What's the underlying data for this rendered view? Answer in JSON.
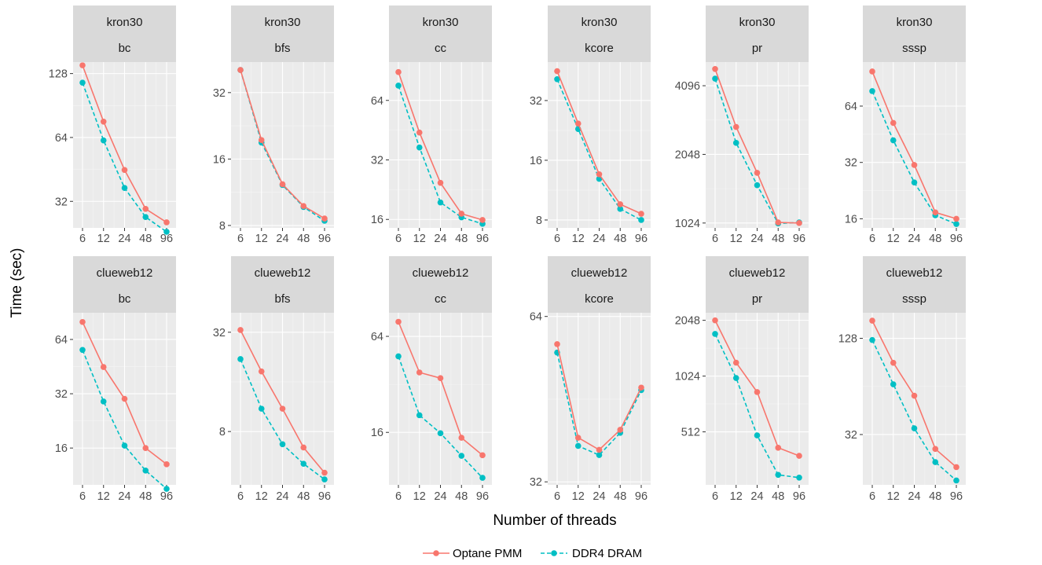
{
  "chart_data": {
    "type": "line",
    "xlabel": "Number of threads",
    "ylabel": "Time (sec)",
    "x": [
      6,
      12,
      24,
      48,
      96
    ],
    "x_tick_labels": [
      "6",
      "12",
      "24",
      "48",
      "96"
    ],
    "y_scale": "log2",
    "grid": true,
    "legend": {
      "position": "bottom",
      "entries": [
        {
          "name": "Optane PMM",
          "color": "#F8766D",
          "linetype": "solid"
        },
        {
          "name": "DDR4 DRAM",
          "color": "#00BFC4",
          "linetype": "dashed"
        }
      ]
    },
    "panels": [
      {
        "dataset": "kron30",
        "algorithm": "bc",
        "ylim": [
          24,
          145
        ],
        "yticks": [
          32,
          64,
          128
        ],
        "ytick_labels": [
          "32",
          "64",
          "128"
        ],
        "series": [
          {
            "name": "Optane PMM",
            "values": [
              140,
              76,
              45,
              29.5,
              25.5
            ]
          },
          {
            "name": "DDR4 DRAM",
            "values": [
              116,
              62,
              37,
              27,
              23
            ]
          }
        ]
      },
      {
        "dataset": "kron30",
        "algorithm": "bfs",
        "ylim": [
          7.8,
          44
        ],
        "yticks": [
          8,
          16,
          32
        ],
        "ytick_labels": [
          "8",
          "16",
          "32"
        ],
        "series": [
          {
            "name": "Optane PMM",
            "values": [
              40.5,
              19.5,
              12.3,
              9.8,
              8.6
            ]
          },
          {
            "name": "DDR4 DRAM",
            "values": [
              40.5,
              19,
              12.2,
              9.7,
              8.4
            ]
          }
        ]
      },
      {
        "dataset": "kron30",
        "algorithm": "cc",
        "ylim": [
          14.5,
          100
        ],
        "yticks": [
          16,
          32,
          64
        ],
        "ytick_labels": [
          "16",
          "32",
          "64"
        ],
        "series": [
          {
            "name": "Optane PMM",
            "values": [
              89,
              44,
              24.5,
              17.1,
              15.9
            ]
          },
          {
            "name": "DDR4 DRAM",
            "values": [
              76,
              37,
              19.5,
              16.4,
              15.2
            ]
          }
        ]
      },
      {
        "dataset": "kron30",
        "algorithm": "kcore",
        "ylim": [
          7.3,
          50
        ],
        "yticks": [
          8,
          16,
          32
        ],
        "ytick_labels": [
          "8",
          "16",
          "32"
        ],
        "series": [
          {
            "name": "Optane PMM",
            "values": [
              45,
              24.5,
              13.6,
              9.6,
              8.6
            ]
          },
          {
            "name": "DDR4 DRAM",
            "values": [
              41,
              23,
              12.9,
              9.1,
              8.0
            ]
          }
        ]
      },
      {
        "dataset": "kron30",
        "algorithm": "pr",
        "ylim": [
          975,
          5200
        ],
        "yticks": [
          1024,
          2048,
          4096
        ],
        "ytick_labels": [
          "1024",
          "2048",
          "4096"
        ],
        "series": [
          {
            "name": "Optane PMM",
            "values": [
              4850,
              2700,
              1700,
              1030,
              1024
            ]
          },
          {
            "name": "DDR4 DRAM",
            "values": [
              4400,
              2300,
              1500,
              1020,
              1030
            ]
          }
        ]
      },
      {
        "dataset": "kron30",
        "algorithm": "sssp",
        "ylim": [
          14.3,
          110
        ],
        "yticks": [
          16,
          32,
          64
        ],
        "ytick_labels": [
          "16",
          "32",
          "64"
        ],
        "series": [
          {
            "name": "Optane PMM",
            "values": [
              98,
              52,
              31,
              17.3,
              16.0
            ]
          },
          {
            "name": "DDR4 DRAM",
            "values": [
              77,
              42,
              25,
              16.7,
              15.0
            ]
          }
        ]
      },
      {
        "dataset": "clueweb12",
        "algorithm": "bc",
        "ylim": [
          10,
          90
        ],
        "yticks": [
          16,
          32,
          64
        ],
        "ytick_labels": [
          "16",
          "32",
          "64"
        ],
        "series": [
          {
            "name": "Optane PMM",
            "values": [
              80,
              45,
              30,
              16,
              13
            ]
          },
          {
            "name": "DDR4 DRAM",
            "values": [
              56,
              29,
              16.5,
              12,
              9.5
            ]
          }
        ]
      },
      {
        "dataset": "clueweb12",
        "algorithm": "bfs",
        "ylim": [
          3.8,
          42
        ],
        "yticks": [
          8,
          32
        ],
        "ytick_labels": [
          "8",
          "32"
        ],
        "series": [
          {
            "name": "Optane PMM",
            "values": [
              33,
              18.5,
              11,
              6.4,
              4.5
            ]
          },
          {
            "name": "DDR4 DRAM",
            "values": [
              22,
              11,
              6.7,
              5.1,
              4.1
            ]
          }
        ]
      },
      {
        "dataset": "clueweb12",
        "algorithm": "cc",
        "ylim": [
          7.5,
          90
        ],
        "yticks": [
          16,
          64
        ],
        "ytick_labels": [
          "16",
          "64"
        ],
        "series": [
          {
            "name": "Optane PMM",
            "values": [
              79,
              38,
              35,
              14.8,
              11.5
            ]
          },
          {
            "name": "DDR4 DRAM",
            "values": [
              48,
              20.5,
              15.8,
              11.4,
              8.3
            ]
          }
        ]
      },
      {
        "dataset": "clueweb12",
        "algorithm": "kcore",
        "ylim": [
          31.6,
          65
        ],
        "yticks": [
          32,
          64
        ],
        "ytick_labels": [
          "32",
          "64"
        ],
        "series": [
          {
            "name": "Optane PMM",
            "values": [
              57,
              38.5,
              36.6,
              39.8,
              47.5
            ]
          },
          {
            "name": "DDR4 DRAM",
            "values": [
              55,
              37.2,
              35.8,
              39.3,
              47.0
            ]
          }
        ]
      },
      {
        "dataset": "clueweb12",
        "algorithm": "pr",
        "ylim": [
          265,
          2250
        ],
        "yticks": [
          512,
          1024,
          2048
        ],
        "ytick_labels": [
          "512",
          "1024",
          "2048"
        ],
        "series": [
          {
            "name": "Optane PMM",
            "values": [
              2048,
              1210,
              840,
              420,
              380
            ]
          },
          {
            "name": "DDR4 DRAM",
            "values": [
              1730,
              1000,
              490,
              300,
              290
            ]
          }
        ]
      },
      {
        "dataset": "clueweb12",
        "algorithm": "sssp",
        "ylim": [
          15.5,
          185
        ],
        "yticks": [
          32,
          128
        ],
        "ytick_labels": [
          "32",
          "128"
        ],
        "series": [
          {
            "name": "Optane PMM",
            "values": [
              165,
              90,
              56,
              26,
              20
            ]
          },
          {
            "name": "DDR4 DRAM",
            "values": [
              125,
              66,
              35,
              21.5,
              16.5
            ]
          }
        ]
      }
    ]
  }
}
